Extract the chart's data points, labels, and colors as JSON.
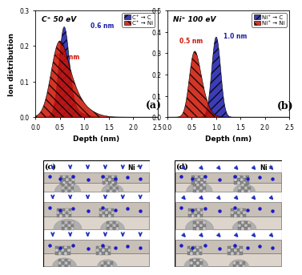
{
  "panel_a": {
    "title": "C⁺ 50 eV",
    "label": "(a)",
    "xlabel": "Depth (nm)",
    "ylabel": "Ion distribution",
    "xlim": [
      0.0,
      2.5
    ],
    "ylim": [
      0.0,
      0.3
    ],
    "yticks": [
      0.0,
      0.1,
      0.2,
      0.3
    ],
    "xticks": [
      0.0,
      0.5,
      1.0,
      1.5,
      2.0,
      2.5
    ],
    "annotation_red": "0.5 nm",
    "annotation_blue": "0.6 nm",
    "legend": [
      "C⁺ → C",
      "C⁺ → Ni"
    ]
  },
  "panel_b": {
    "title": "Ni⁺ 100 eV",
    "label": "(b)",
    "xlabel": "Depth (nm)",
    "xlim": [
      0.0,
      2.5
    ],
    "ylim": [
      0.0,
      0.5
    ],
    "yticks": [
      0.0,
      0.1,
      0.2,
      0.3,
      0.4,
      0.5
    ],
    "xticks": [
      0.0,
      0.5,
      1.0,
      1.5,
      2.0,
      2.5
    ],
    "annotation_red": "0.5 nm",
    "annotation_blue": "1.0 nm",
    "legend": [
      "Ni⁺ → C",
      "Ni⁺ → Ni"
    ]
  },
  "blue_color": "#1a1aaa",
  "red_color": "#cc1100",
  "arrow_color": "#2233bb",
  "dot_color": "#1a1acc",
  "cluster_dark": "#888888",
  "cluster_light": "#cccccc",
  "mound_color": "#aaaaaa",
  "surface_color": "#c8c0b8",
  "bg_color_top": "#f0ecea",
  "bg_color_bottom": "#e8e0d8"
}
